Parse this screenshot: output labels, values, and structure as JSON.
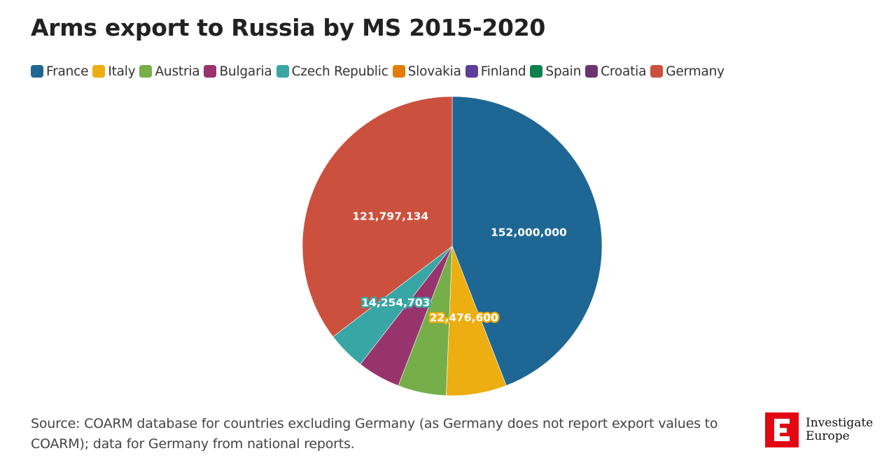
{
  "title": "Arms export to Russia by MS 2015-2020",
  "source_text": "Source: COARM database for countries excluding Germany (as Germany does not report export values to COARM); data for Germany from national reports.",
  "logo": {
    "line1": "Investigate",
    "line2": "Europe",
    "color": "#e30613"
  },
  "chart_data": {
    "type": "pie",
    "title": "Arms export to Russia by MS 2015-2020",
    "legend_position": "top-left",
    "series": [
      {
        "name": "France",
        "value": 152000000,
        "label": "152,000,000",
        "color": "#1e6794"
      },
      {
        "name": "Italy",
        "value": 22476600,
        "label": "22,476,600",
        "color": "#ecae10"
      },
      {
        "name": "Austria",
        "value": 18000000,
        "label": "",
        "color": "#76ae4a"
      },
      {
        "name": "Bulgaria",
        "value": 16000000,
        "label": "",
        "color": "#97346e"
      },
      {
        "name": "Czech Republic",
        "value": 14254703,
        "label": "14,254,703",
        "color": "#38a6a5"
      },
      {
        "name": "Slovakia",
        "value": 0,
        "label": "",
        "color": "#e17c05"
      },
      {
        "name": "Finland",
        "value": 0,
        "label": "",
        "color": "#5b3f99"
      },
      {
        "name": "Spain",
        "value": 0,
        "label": "",
        "color": "#0f7f4d"
      },
      {
        "name": "Croatia",
        "value": 0,
        "label": "",
        "color": "#6c3570"
      },
      {
        "name": "Germany",
        "value": 121797134,
        "label": "121,797,134",
        "color": "#cc503e"
      }
    ]
  }
}
